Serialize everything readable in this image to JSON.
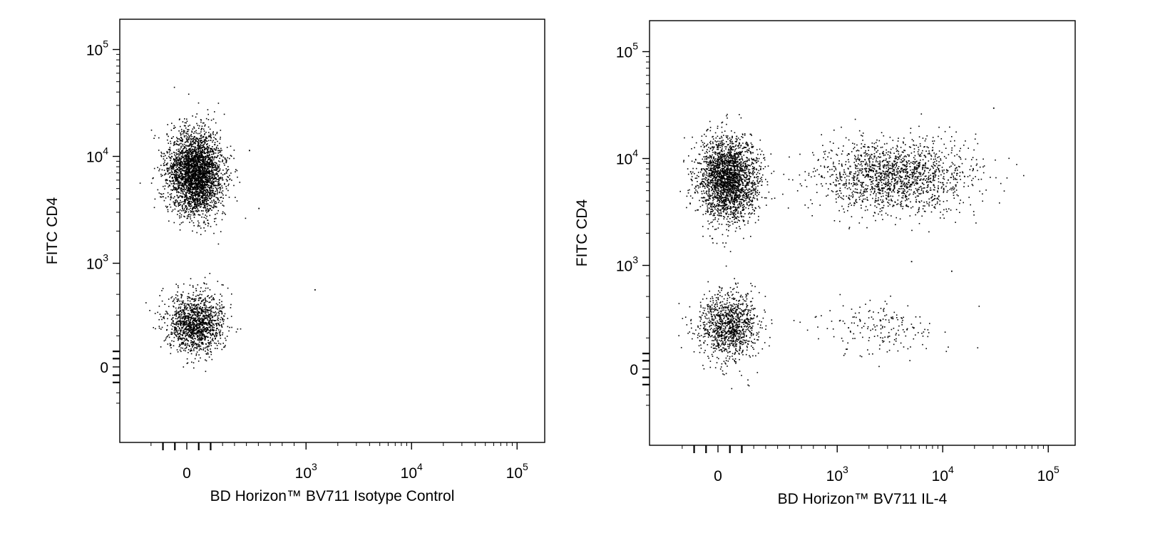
{
  "chart_data": [
    {
      "type": "scatter",
      "x_scale": "biexponential",
      "y_scale": "biexponential",
      "xlabel": "BD Horizon™ BV711 Isotype Control",
      "ylabel": "FITC CD4",
      "xlim": [
        -300,
        200000
      ],
      "ylim": [
        -350,
        200000
      ],
      "x_tick_values": [
        0,
        1000,
        10000,
        100000
      ],
      "x_tick_labels": [
        {
          "base": "0",
          "exp": ""
        },
        {
          "base": "10",
          "exp": "3"
        },
        {
          "base": "10",
          "exp": "4"
        },
        {
          "base": "10",
          "exp": "5"
        }
      ],
      "y_tick_values": [
        0,
        1000,
        10000,
        100000
      ],
      "y_tick_labels": [
        {
          "base": "0",
          "exp": ""
        },
        {
          "base": "10",
          "exp": "3"
        },
        {
          "base": "10",
          "exp": "4"
        },
        {
          "base": "10",
          "exp": "5"
        }
      ],
      "grid": false,
      "populations": [
        {
          "name": "CD4+ BV711-",
          "x_center": 70,
          "y_center": 7000,
          "x_range": [
            -150,
            450
          ],
          "y_range": [
            2000,
            20000
          ],
          "n_points": 3200
        },
        {
          "name": "CD4- BV711-",
          "x_center": 70,
          "y_center": 420,
          "x_range": [
            -150,
            450
          ],
          "y_range": [
            180,
            900
          ],
          "n_points": 1400
        }
      ],
      "outliers": [
        {
          "x": 1200,
          "y": 750
        },
        {
          "x": 600,
          "y": 3300
        },
        {
          "x": 520,
          "y": 11500
        }
      ]
    },
    {
      "type": "scatter",
      "x_scale": "biexponential",
      "y_scale": "biexponential",
      "xlabel": "BD Horizon™ BV711 IL-4",
      "ylabel": "FITC CD4",
      "xlim": [
        -300,
        200000
      ],
      "ylim": [
        -350,
        200000
      ],
      "x_tick_values": [
        0,
        1000,
        10000,
        100000
      ],
      "x_tick_labels": [
        {
          "base": "0",
          "exp": ""
        },
        {
          "base": "10",
          "exp": "3"
        },
        {
          "base": "10",
          "exp": "4"
        },
        {
          "base": "10",
          "exp": "5"
        }
      ],
      "y_tick_values": [
        0,
        1000,
        10000,
        100000
      ],
      "y_tick_labels": [
        {
          "base": "0",
          "exp": ""
        },
        {
          "base": "10",
          "exp": "3"
        },
        {
          "base": "10",
          "exp": "4"
        },
        {
          "base": "10",
          "exp": "5"
        }
      ],
      "grid": false,
      "populations": [
        {
          "name": "CD4+ IL-4-",
          "x_center": 80,
          "y_center": 6500,
          "x_range": [
            -150,
            500
          ],
          "y_range": [
            2000,
            20000
          ],
          "n_points": 2500
        },
        {
          "name": "CD4+ IL-4+",
          "x_center": 3500,
          "y_center": 7000,
          "x_range": [
            500,
            20000
          ],
          "y_range": [
            2500,
            20000
          ],
          "n_points": 1600
        },
        {
          "name": "CD4- IL-4-",
          "x_center": 80,
          "y_center": 420,
          "x_range": [
            -150,
            500
          ],
          "y_range": [
            150,
            1000
          ],
          "n_points": 1100
        },
        {
          "name": "CD4- IL-4+",
          "x_center": 2500,
          "y_center": 400,
          "x_range": [
            500,
            10000
          ],
          "y_range": [
            200,
            900
          ],
          "n_points": 180
        }
      ],
      "outliers": [
        {
          "x": 30000,
          "y": 30000
        },
        {
          "x": 12000,
          "y": 950
        },
        {
          "x": 5000,
          "y": 1100
        }
      ]
    }
  ]
}
